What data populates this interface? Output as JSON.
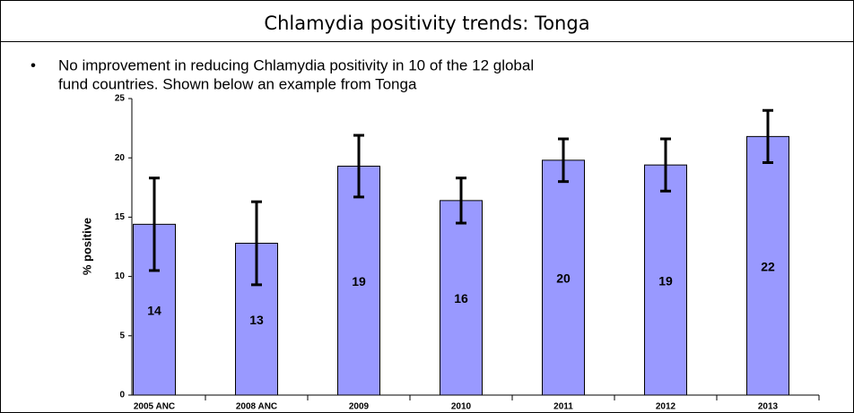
{
  "header": {
    "title": "Chlamydia positivity trends: Tonga"
  },
  "bullet": [
    "No improvement in reducing Chlamydia positivity in 10 of the 12 global",
    "fund countries. Shown below an example from Tonga"
  ],
  "chart_data": {
    "type": "bar",
    "y_label": "% positive",
    "categories": [
      "2005 ANC",
      "2008 ANC",
      "2009",
      "2010",
      "2011",
      "2012",
      "2013"
    ],
    "series": [
      {
        "color": "#9999ff",
        "values": [
          14.4,
          12.8,
          19.3,
          16.4,
          19.8,
          19.4,
          21.8
        ],
        "value_labels": [
          "14",
          "13",
          "19",
          "16",
          "20",
          "19",
          "22"
        ],
        "errors": [
          3.9,
          3.5,
          2.6,
          1.9,
          1.8,
          2.2,
          2.2
        ]
      }
    ],
    "ylim": [
      0,
      25
    ],
    "yticks": [
      0,
      5,
      10,
      15,
      20,
      25
    ],
    "grid": false
  }
}
